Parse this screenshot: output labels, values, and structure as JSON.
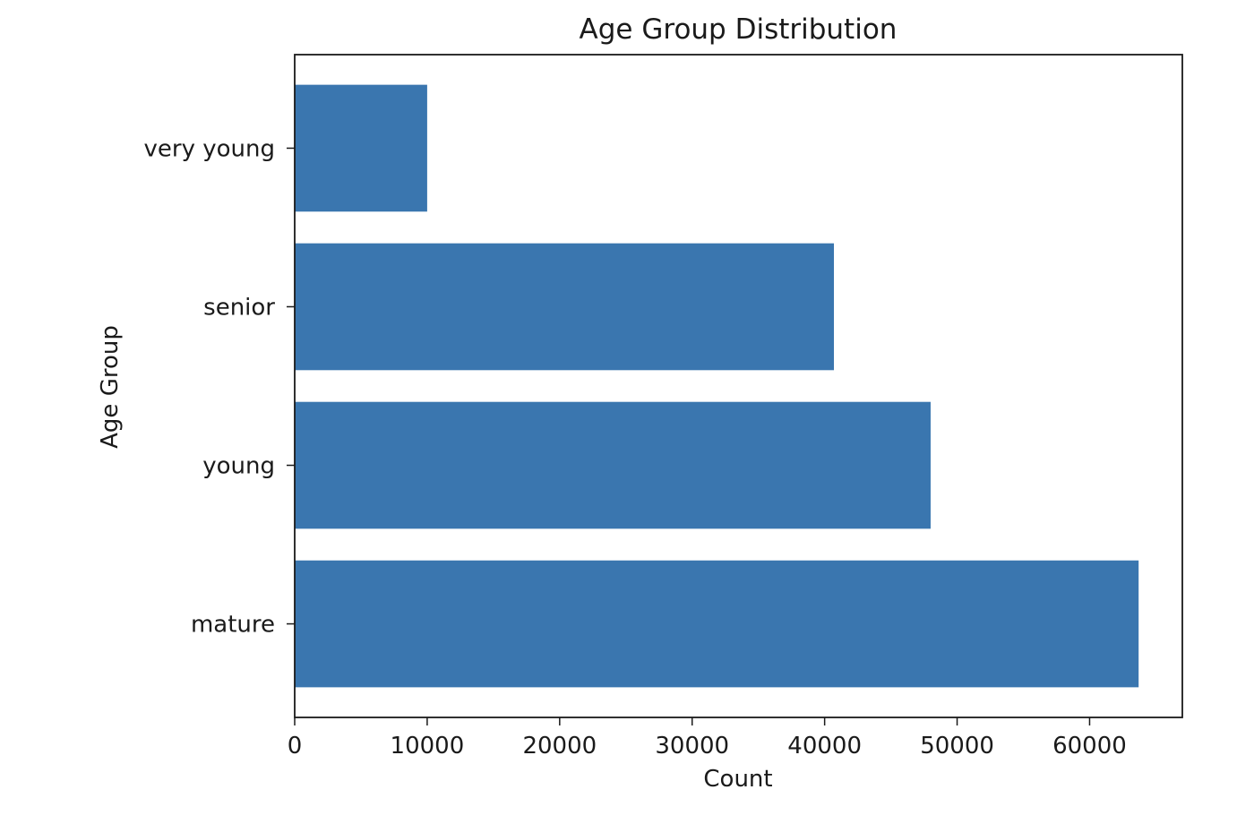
{
  "chart_data": {
    "type": "bar",
    "orientation": "horizontal",
    "title": "Age Group Distribution",
    "xlabel": "Count",
    "ylabel": "Age Group",
    "categories": [
      "mature",
      "young",
      "senior",
      "very young"
    ],
    "values": [
      63700,
      48000,
      40700,
      10000
    ],
    "xlim": [
      0,
      67000
    ],
    "xticks": [
      0,
      10000,
      20000,
      30000,
      40000,
      50000,
      60000
    ],
    "grid": false,
    "legend": "none",
    "bar_color": "#3A76AF"
  }
}
